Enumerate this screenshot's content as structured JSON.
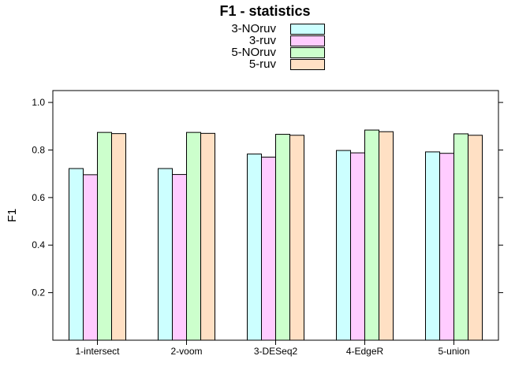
{
  "chart_data": {
    "type": "bar",
    "title": "F1 - statistics",
    "xlabel": "",
    "ylabel": "F1",
    "ylim": [
      0.0,
      1.05
    ],
    "yticks": [
      0.2,
      0.4,
      0.6,
      0.8,
      1.0
    ],
    "ytick_labels": [
      "0.2",
      "0.4",
      "0.6",
      "0.8",
      "1.0"
    ],
    "categories": [
      "1-intersect",
      "2-voom",
      "3-DESeq2",
      "4-EdgeR",
      "5-union"
    ],
    "legend_position": "top",
    "series": [
      {
        "name": "3-NOruv",
        "color": "#ccffff",
        "values": [
          0.722,
          0.722,
          0.783,
          0.798,
          0.792
        ]
      },
      {
        "name": "3-ruv",
        "color": "#ffccff",
        "values": [
          0.696,
          0.697,
          0.77,
          0.788,
          0.786
        ]
      },
      {
        "name": "5-NOruv",
        "color": "#ccffcc",
        "values": [
          0.874,
          0.874,
          0.866,
          0.884,
          0.868
        ]
      },
      {
        "name": "5-ruv",
        "color": "#ffe0c4",
        "values": [
          0.869,
          0.87,
          0.862,
          0.877,
          0.862
        ]
      }
    ]
  }
}
